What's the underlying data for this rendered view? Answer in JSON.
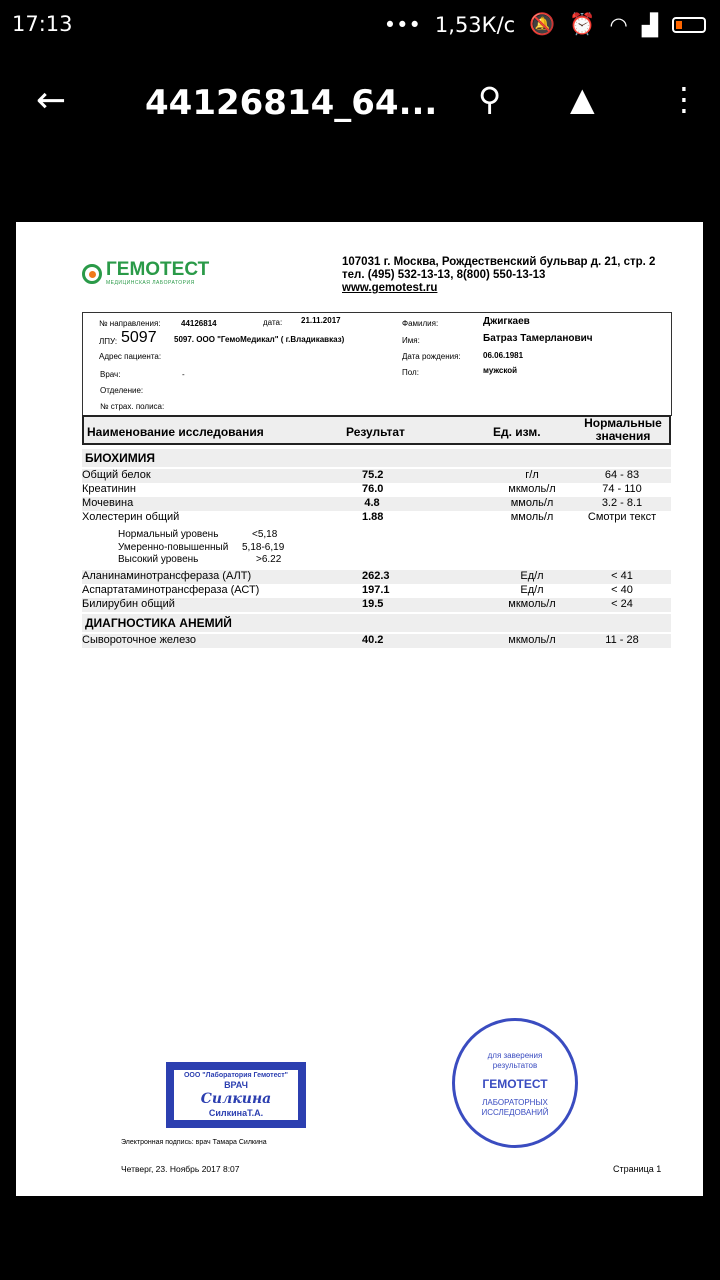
{
  "status_bar": {
    "time": "17:13",
    "speed": "1,53К/с"
  },
  "app_bar": {
    "title": "44126814_64..."
  },
  "document": {
    "logo": {
      "name": "ГЕМОТЕСТ",
      "subtitle": "МЕДИЦИНСКАЯ ЛАБОРАТОРИЯ"
    },
    "address": "107031 г. Москва, Рождественский бульвар д. 21, стр. 2",
    "phone": "тел. (495) 532-13-13, 8(800) 550-13-13",
    "website": "www.gemotest.ru",
    "info": {
      "referral_label": "№ направления:",
      "referral": "44126814",
      "date_label": "дата:",
      "date": "21.11.2017",
      "lpu_label": "ЛПУ:",
      "lpu": "5097",
      "lpu_name": "5097. ООО \"ГемоМедикал\" ( г.Владикавказ)",
      "address_label": "Адрес пациента:",
      "doctor_label": "Врач:",
      "doctor": "-",
      "department_label": "Отделение:",
      "policy_label": "№ страх. полиса:",
      "surname_label": "Фамилия:",
      "surname": "Джигкаев",
      "name_label": "Имя:",
      "name": "Батраз Тамерланович",
      "dob_label": "Дата рождения:",
      "dob": "06.06.1981",
      "sex_label": "Пол:",
      "sex": "мужской"
    },
    "table_headers": [
      "Наименование исследования",
      "Результат",
      "Ед. изм.",
      "Нормальные значения"
    ],
    "section1": "БИОХИМИЯ",
    "rows1": [
      {
        "name": "Общий белок",
        "result": "75.2",
        "unit": "г/л",
        "norm": "64 - 83"
      },
      {
        "name": "Креатинин",
        "result": "76.0",
        "unit": "мкмоль/л",
        "norm": "74 - 110"
      },
      {
        "name": "Мочевина",
        "result": "4.8",
        "unit": "ммоль/л",
        "norm": "3.2 - 8.1"
      },
      {
        "name": "Холестерин общий",
        "result": "1.88",
        "unit": "ммоль/л",
        "norm": "Смотри текст"
      }
    ],
    "notes": [
      {
        "label": "Нормальный уровень",
        "value": "<5,18"
      },
      {
        "label": "Умеренно-повышенный",
        "value": "5,18-6,19"
      },
      {
        "label": "Высокий уровень",
        "value": ">6.22"
      }
    ],
    "rows2": [
      {
        "name": "Аланинаминотрансфераза (АЛТ)",
        "result": "262.3",
        "unit": "Ед/л",
        "norm": "< 41"
      },
      {
        "name": "Аспартатаминотрансфераза (АСТ)",
        "result": "197.1",
        "unit": "Ед/л",
        "norm": "< 40"
      },
      {
        "name": "Билирубин общий",
        "result": "19.5",
        "unit": "мкмоль/л",
        "norm": "< 24"
      }
    ],
    "section2": "ДИАГНОСТИКА АНЕМИЙ",
    "rows3": [
      {
        "name": "Сывороточное железо",
        "result": "40.2",
        "unit": "мкмоль/л",
        "norm": "11 - 28"
      }
    ],
    "stamp_doctor": {
      "top": "ООО \"Лаборатория Гемотест\"",
      "title": "ВРАЧ",
      "signature": "Силкина",
      "name": "СилкинаТ.А."
    },
    "stamp_seal": {
      "line1": "для заверения",
      "line2": "результатов",
      "brand": "ГЕМОТЕСТ",
      "line3": "ЛАБОРАТОРНЫХ",
      "line4": "ИССЛЕДОВАНИЙ"
    },
    "e_signature": "Электронная подпись: врач Тамара Силкина",
    "printed": "Четверг, 23. Ноябрь 2017 8:07",
    "page": "Страница 1"
  }
}
